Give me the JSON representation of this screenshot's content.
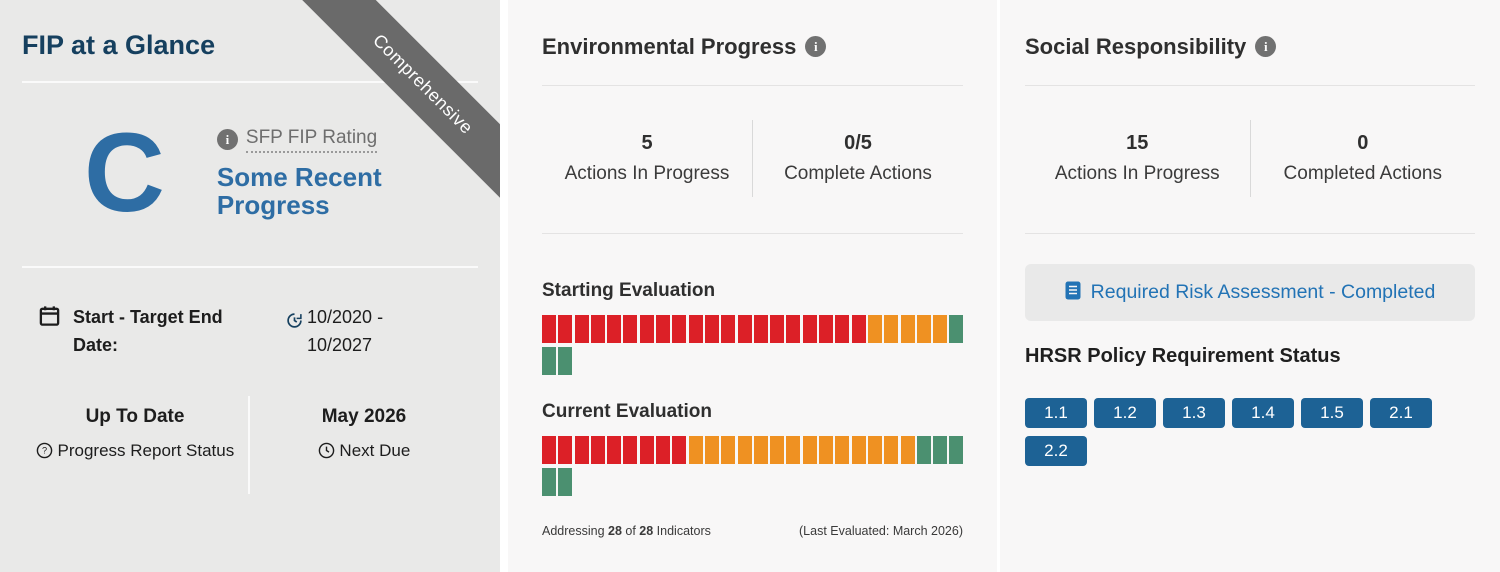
{
  "colors": {
    "red": "#dc2027",
    "orange": "#ef9122",
    "green": "#4b9070",
    "button_blue": "#1d6295",
    "link_blue": "#2273b5",
    "navy": "#16405f",
    "rating_blue": "#2e6da4",
    "ribbon_gray": "#6a6a6a"
  },
  "glance": {
    "title": "FIP at a Glance",
    "ribbon": "Comprehensive",
    "rating": {
      "letter": "C",
      "link": "SFP FIP Rating",
      "description": "Some Recent Progress"
    },
    "dates": {
      "label": "Start - Target End Date:",
      "value": "10/2020 - 10/2027"
    },
    "report": {
      "value": "Up To Date",
      "label": "Progress Report Status"
    },
    "next_due": {
      "value": "May 2026",
      "label": "Next Due"
    }
  },
  "environmental": {
    "title": "Environmental Progress",
    "stats": [
      {
        "value": "5",
        "label": "Actions In Progress"
      },
      {
        "value": "0/5",
        "label": "Complete Actions"
      }
    ],
    "evaluations": {
      "starting": {
        "label": "Starting Evaluation",
        "red": 20,
        "orange": 5,
        "green": 3
      },
      "current": {
        "label": "Current Evaluation",
        "red": 9,
        "orange": 14,
        "green": 5
      }
    },
    "footer": {
      "prefix": "Addressing ",
      "count": "28",
      "middle": " of ",
      "total": "28",
      "suffix": " Indicators",
      "evaluated": "(Last Evaluated: March 2026)"
    }
  },
  "social": {
    "title": "Social Responsibility",
    "stats": [
      {
        "value": "15",
        "label": "Actions In Progress"
      },
      {
        "value": "0",
        "label": "Completed Actions"
      }
    ],
    "risk_link": "Required Risk Assessment - Completed",
    "hrsr_title": "HRSR Policy Requirement Status",
    "hrsr_buttons": [
      "1.1",
      "1.2",
      "1.3",
      "1.4",
      "1.5",
      "2.1",
      "2.2"
    ]
  }
}
